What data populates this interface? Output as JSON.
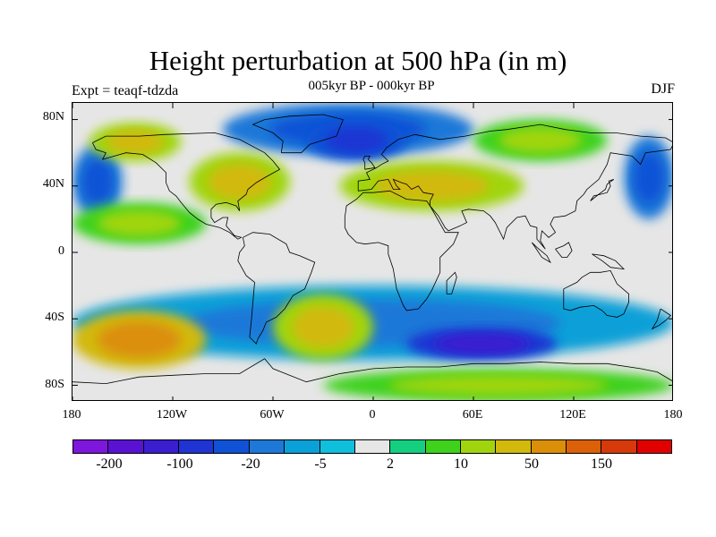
{
  "figure": {
    "title": "Height perturbation at 500 hPa (in m)",
    "subtitle": "005kyr BP - 000kyr BP",
    "experiment_label": "Expt = teaqf-tdzda",
    "season": "DJF"
  },
  "chart_data": {
    "type": "heatmap",
    "variable": "500 hPa height perturbation",
    "units": "m",
    "projection": "cylindrical equidistant",
    "lon_range": [
      -180,
      180
    ],
    "lat_range": [
      -90,
      90
    ],
    "lat_tick_labels": [
      "80N",
      "40N",
      "0",
      "40S",
      "80S"
    ],
    "lat_tick_values": [
      80,
      40,
      0,
      -40,
      -80
    ],
    "lon_tick_labels": [
      "180",
      "120W",
      "60W",
      "0",
      "60E",
      "120E",
      "180"
    ],
    "lon_tick_values": [
      -180,
      -120,
      -60,
      0,
      60,
      120,
      180
    ],
    "colorbar": {
      "levels": [
        -200,
        -150,
        -100,
        -50,
        -20,
        -10,
        -5,
        -2,
        2,
        5,
        10,
        20,
        50,
        100,
        150,
        200
      ],
      "labels": [
        "-200",
        "-100",
        "-20",
        "-5",
        "2",
        "10",
        "50",
        "150"
      ],
      "colors": [
        "#7d17db",
        "#5a12d2",
        "#3a1ecf",
        "#1f34d3",
        "#0f52d6",
        "#1e78d8",
        "#0aa0d8",
        "#10bfdc",
        "#e6e6e6",
        "#14cf80",
        "#3ed21c",
        "#a0d50e",
        "#d2b90c",
        "#db8f08",
        "#db6008",
        "#d63a0b",
        "#e00000"
      ]
    },
    "features": [
      {
        "name": "arctic-negative",
        "lon": [
          -90,
          60
        ],
        "lat": [
          58,
          90
        ],
        "level": 5
      },
      {
        "name": "north-atlantic-low",
        "lon": [
          -40,
          20
        ],
        "lat": [
          55,
          80
        ],
        "level": 4
      },
      {
        "name": "north-pacific-trough",
        "lon": [
          150,
          180
        ],
        "lat": [
          20,
          70
        ],
        "level": 5
      },
      {
        "name": "north-pacific-trough-west",
        "lon": [
          -180,
          -150
        ],
        "lat": [
          20,
          65
        ],
        "level": 5
      },
      {
        "name": "alaska-positive",
        "lon": [
          -170,
          -115
        ],
        "lat": [
          55,
          78
        ],
        "level": 11
      },
      {
        "name": "north-america-positive",
        "lon": [
          -110,
          -50
        ],
        "lat": [
          25,
          60
        ],
        "level": 11
      },
      {
        "name": "europe-asia-positive",
        "lon": [
          -20,
          90
        ],
        "lat": [
          25,
          55
        ],
        "level": 11
      },
      {
        "name": "siberia-positive",
        "lon": [
          60,
          140
        ],
        "lat": [
          55,
          80
        ],
        "level": 10
      },
      {
        "name": "tropical-pacific-band",
        "lon": [
          -180,
          -100
        ],
        "lat": [
          5,
          30
        ],
        "level": 10
      },
      {
        "name": "southern-ocean-negative",
        "lon": [
          -180,
          180
        ],
        "lat": [
          -65,
          -20
        ],
        "level": 6
      },
      {
        "name": "south-pacific-positive",
        "lon": [
          -180,
          -100
        ],
        "lat": [
          -70,
          -35
        ],
        "level": 12
      },
      {
        "name": "south-atlantic-positive",
        "lon": [
          -60,
          0
        ],
        "lat": [
          -65,
          -25
        ],
        "level": 11
      },
      {
        "name": "south-indian-negative",
        "lon": [
          20,
          110
        ],
        "lat": [
          -65,
          -45
        ],
        "level": 3
      },
      {
        "name": "antarctic-positive",
        "lon": [
          -30,
          180
        ],
        "lat": [
          -90,
          -70
        ],
        "level": 10
      }
    ]
  }
}
